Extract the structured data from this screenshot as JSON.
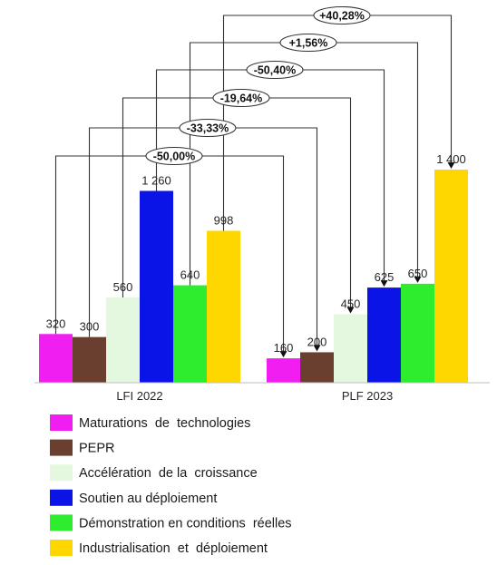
{
  "chart_data": {
    "type": "bar",
    "categories": [
      "LFI  2022",
      "PLF 2023"
    ],
    "series": [
      {
        "name": "Maturations  de  technologies",
        "values": [
          320,
          160
        ],
        "color": "#f01ef0"
      },
      {
        "name": "PEPR",
        "values": [
          300,
          200
        ],
        "color": "#6b3f30"
      },
      {
        "name": "Accélération  de la  croissance",
        "values": [
          560,
          450
        ],
        "color": "#e4f8e0"
      },
      {
        "name": "Soutien au déploiement",
        "values": [
          1260,
          625
        ],
        "color": "#0a14e6"
      },
      {
        "name": "Démonstration en conditions  réelles",
        "values": [
          640,
          650
        ],
        "color": "#2eec2e"
      },
      {
        "name": "Industrialisation  et  déploiement",
        "values": [
          998,
          1400
        ],
        "color": "#ffd700"
      }
    ],
    "value_labels": [
      [
        "320",
        "300",
        "560",
        "1 260",
        "640",
        "998"
      ],
      [
        "160",
        "200",
        "450",
        "625",
        "650",
        "1 400"
      ]
    ],
    "changes": [
      "-50,00%",
      "-33,33%",
      "-19,64%",
      "-50,40%",
      "+1,56%",
      "+40,28%"
    ],
    "ylim": [
      0,
      1400
    ],
    "grid": false,
    "legend_position": "bottom"
  }
}
